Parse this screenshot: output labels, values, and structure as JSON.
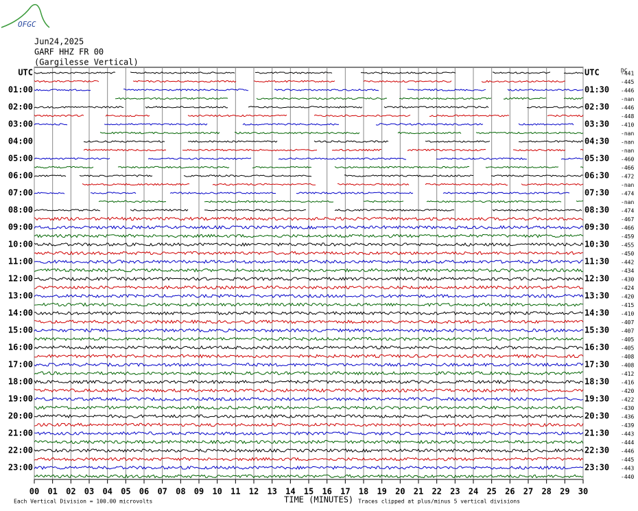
{
  "logo": "OFGC",
  "header": {
    "date": "Jun24,2025",
    "station": "GARF HHZ FR 00",
    "location": "(Gargilesse Vertical)"
  },
  "left_labels": [
    "UTC",
    "01:00",
    "02:00",
    "03:00",
    "04:00",
    "05:00",
    "06:00",
    "07:00",
    "08:00",
    "09:00",
    "10:00",
    "11:00",
    "12:00",
    "13:00",
    "14:00",
    "15:00",
    "16:00",
    "17:00",
    "18:00",
    "19:00",
    "20:00",
    "21:00",
    "22:00",
    "23:00"
  ],
  "right_labels": [
    "UTC",
    "01:30",
    "02:30",
    "03:30",
    "04:30",
    "05:30",
    "06:30",
    "07:30",
    "08:30",
    "09:30",
    "10:30",
    "11:30",
    "12:30",
    "13:30",
    "14:30",
    "15:30",
    "16:30",
    "17:30",
    "18:30",
    "19:30",
    "20:30",
    "21:30",
    "22:30",
    "23:30"
  ],
  "dc_label": "DC",
  "dc_offsets": [
    "-441",
    "-445",
    "-446",
    "-nan",
    "-446",
    "-448",
    "-410",
    "-nan",
    "-nan",
    "-nan",
    "-460",
    "-466",
    "-472",
    "-nan",
    "-474",
    "-nan",
    "-474",
    "-467",
    "-466",
    "-459",
    "-455",
    "-450",
    "-442",
    "-434",
    "-430",
    "-424",
    "-420",
    "-415",
    "-410",
    "-407",
    "-407",
    "-405",
    "-405",
    "-408",
    "-408",
    "-412",
    "-416",
    "-420",
    "-422",
    "-430",
    "-436",
    "-439",
    "-443",
    "-444",
    "-446",
    "-445",
    "-443",
    "-440"
  ],
  "trace_colors": [
    "#000000",
    "#d00000",
    "#0000c8",
    "#006400"
  ],
  "x_ticks": [
    "00",
    "01",
    "02",
    "03",
    "04",
    "05",
    "06",
    "07",
    "08",
    "09",
    "10",
    "11",
    "12",
    "13",
    "14",
    "15",
    "16",
    "17",
    "18",
    "19",
    "20",
    "21",
    "22",
    "23",
    "24",
    "25",
    "26",
    "27",
    "28",
    "29",
    "30"
  ],
  "footer": {
    "scale": "Each Vertical Division =  100.00 microvolts",
    "xlabel": "TIME (MINUTES)",
    "clip": "Traces clipped at plus/minus 5 vertical divisions"
  }
}
